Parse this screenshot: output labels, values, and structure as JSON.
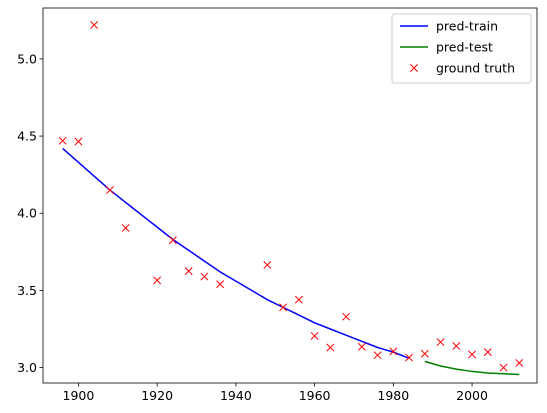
{
  "chart_data": {
    "type": "line",
    "title": "",
    "xlabel": "",
    "ylabel": "",
    "xlim": [
      1891,
      2016.5
    ],
    "ylim": [
      2.9,
      5.33
    ],
    "xticks": [
      1900,
      1920,
      1940,
      1960,
      1980,
      2000
    ],
    "yticks": [
      3.0,
      3.5,
      4.0,
      4.5,
      5.0
    ],
    "xtick_labels": [
      "1900",
      "1920",
      "1940",
      "1960",
      "1980",
      "2000"
    ],
    "ytick_labels": [
      "3.0",
      "3.5",
      "4.0",
      "4.5",
      "5.0"
    ],
    "grid": false,
    "legend_position": "top-right",
    "series": [
      {
        "name": "pred-train",
        "kind": "line",
        "color": "#0000ff",
        "x": [
          1896,
          1900,
          1904,
          1908,
          1912,
          1916,
          1920,
          1924,
          1928,
          1932,
          1936,
          1940,
          1944,
          1948,
          1952,
          1956,
          1960,
          1964,
          1968,
          1972,
          1976,
          1980,
          1984
        ],
        "y": [
          4.42,
          4.33,
          4.24,
          4.15,
          4.07,
          3.99,
          3.91,
          3.83,
          3.76,
          3.69,
          3.62,
          3.56,
          3.5,
          3.44,
          3.39,
          3.34,
          3.29,
          3.25,
          3.21,
          3.17,
          3.13,
          3.1,
          3.06
        ]
      },
      {
        "name": "pred-test",
        "kind": "line",
        "color": "#008000",
        "x": [
          1988,
          1992,
          1996,
          2000,
          2004,
          2008,
          2012
        ],
        "y": [
          3.04,
          3.01,
          2.99,
          2.975,
          2.965,
          2.96,
          2.955
        ]
      },
      {
        "name": "ground truth",
        "kind": "scatter",
        "marker": "x",
        "color": "#ff0000",
        "x": [
          1896,
          1900,
          1904,
          1908,
          1912,
          1920,
          1924,
          1928,
          1932,
          1936,
          1948,
          1952,
          1956,
          1960,
          1964,
          1968,
          1972,
          1976,
          1980,
          1984,
          1988,
          1992,
          1996,
          2000,
          2004,
          2008,
          2012
        ],
        "y": [
          4.47,
          4.465,
          5.22,
          4.15,
          3.905,
          3.565,
          3.825,
          3.625,
          3.59,
          3.54,
          3.665,
          3.39,
          3.44,
          3.205,
          3.13,
          3.33,
          3.135,
          3.08,
          3.105,
          3.065,
          3.09,
          3.165,
          3.14,
          3.085,
          3.1,
          3.0,
          3.03
        ]
      }
    ]
  }
}
